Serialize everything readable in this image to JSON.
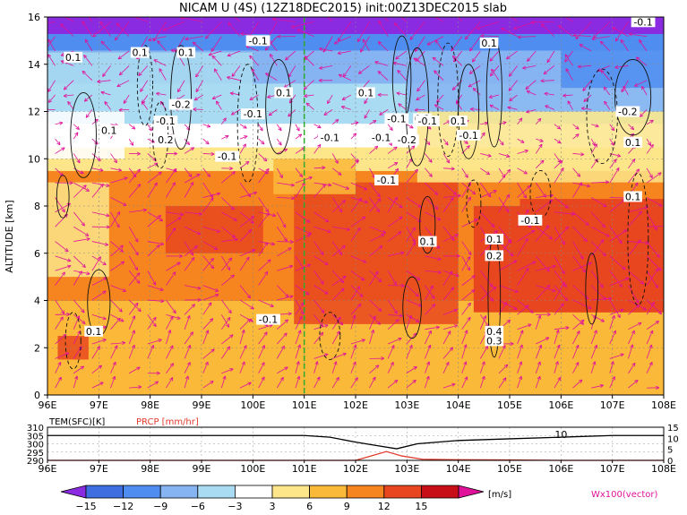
{
  "title": "NICAM U (4S) (12Z18DEC2015) init:00Z13DEC2015 slab",
  "chart_data": [
    {
      "type": "heatmap",
      "title": "NICAM U (4S) (12Z18DEC2015) init:00Z13DEC2015 slab",
      "xlabel": "",
      "ylabel": "ALTITUDE [km]",
      "xlim": [
        96,
        108
      ],
      "ylim": [
        0,
        16
      ],
      "x_ticks": [
        "96E",
        "97E",
        "98E",
        "99E",
        "100E",
        "101E",
        "102E",
        "103E",
        "104E",
        "105E",
        "106E",
        "107E",
        "108E"
      ],
      "y_ticks": [
        "0",
        "2",
        "4",
        "6",
        "8",
        "10",
        "12",
        "14",
        "16"
      ],
      "marker_lon": 101,
      "color_levels": [
        -15,
        -12,
        -9,
        -6,
        -3,
        3,
        6,
        9,
        12,
        15
      ],
      "colors": [
        "#8a2be2",
        "#3e6ee0",
        "#4f8df0",
        "#86b3f2",
        "#a9dcf2",
        "#ffffff",
        "#fde58a",
        "#fbb93a",
        "#f6851f",
        "#e8461e",
        "#c70f17",
        "#e0129a"
      ],
      "colorbar_tick_labels": [
        "−15",
        "−12",
        "−9",
        "−6",
        "−3",
        "3",
        "6",
        "9",
        "12",
        "15"
      ],
      "colorbar_unit": "[m/s]",
      "vector_label": "Wx100(vector)",
      "vector_color": "#e0129a",
      "layers_km": [
        {
          "z": [
            0,
            1.2
          ],
          "u": 6
        },
        {
          "z": [
            1.2,
            4.0
          ],
          "u": 8
        },
        {
          "z": [
            4.0,
            7.0
          ],
          "u": 9.5
        },
        {
          "z": [
            7.0,
            9.5
          ],
          "u": 10.5
        },
        {
          "z": [
            9.5,
            10.5
          ],
          "u": 5
        },
        {
          "z": [
            10.5,
            11.5
          ],
          "u": 2
        },
        {
          "z": [
            11.5,
            13.2
          ],
          "u": -4
        },
        {
          "z": [
            13.2,
            14.6
          ],
          "u": -7
        },
        {
          "z": [
            14.6,
            15.3
          ],
          "u": -11
        },
        {
          "z": [
            15.3,
            16
          ],
          "u": -16
        }
      ],
      "strong_core": {
        "lon": [
          104.3,
          108
        ],
        "z": [
          3.5,
          8.0
        ],
        "u": 13
      },
      "contour_labels": [
        {
          "lon": 97.8,
          "z": 14.5,
          "text": "0.1"
        },
        {
          "lon": 98.7,
          "z": 14.5,
          "text": "0.1"
        },
        {
          "lon": 98.6,
          "z": 12.3,
          "text": "-0.2"
        },
        {
          "lon": 98.3,
          "z": 11.6,
          "text": "-0.1"
        },
        {
          "lon": 98.3,
          "z": 10.8,
          "text": "0.2"
        },
        {
          "lon": 97.2,
          "z": 11.2,
          "text": "0.1"
        },
        {
          "lon": 96.5,
          "z": 14.3,
          "text": "0.1"
        },
        {
          "lon": 100.0,
          "z": 11.9,
          "text": "-0.1"
        },
        {
          "lon": 99.5,
          "z": 10.1,
          "text": "-0.1"
        },
        {
          "lon": 100.6,
          "z": 12.8,
          "text": "0.1"
        },
        {
          "lon": 102.2,
          "z": 12.8,
          "text": "0.1"
        },
        {
          "lon": 101.5,
          "z": 10.9,
          "text": "-0.1"
        },
        {
          "lon": 102.5,
          "z": 10.9,
          "text": "-0.1"
        },
        {
          "lon": 103.0,
          "z": 10.8,
          "text": "-0.2"
        },
        {
          "lon": 102.8,
          "z": 11.7,
          "text": "-0.1"
        },
        {
          "lon": 103.3,
          "z": 11.7,
          "text": "0.1"
        },
        {
          "lon": 104.0,
          "z": 11.6,
          "text": "0.1"
        },
        {
          "lon": 104.2,
          "z": 11.0,
          "text": "-0.1"
        },
        {
          "lon": 104.6,
          "z": 14.9,
          "text": "0.1"
        },
        {
          "lon": 103.4,
          "z": 11.6,
          "text": "-0.1"
        },
        {
          "lon": 100.1,
          "z": 15.0,
          "text": "-0.1"
        },
        {
          "lon": 107.6,
          "z": 15.8,
          "text": "-0.1"
        },
        {
          "lon": 107.3,
          "z": 12.0,
          "text": "-0.2"
        },
        {
          "lon": 107.4,
          "z": 10.7,
          "text": "0.1"
        },
        {
          "lon": 107.4,
          "z": 8.4,
          "text": "0.1"
        },
        {
          "lon": 102.6,
          "z": 9.1,
          "text": "-0.1"
        },
        {
          "lon": 105.4,
          "z": 7.4,
          "text": "-0.1"
        },
        {
          "lon": 103.4,
          "z": 6.5,
          "text": "0.1"
        },
        {
          "lon": 104.7,
          "z": 6.6,
          "text": "0.1"
        },
        {
          "lon": 104.7,
          "z": 5.9,
          "text": "0.2"
        },
        {
          "lon": 100.3,
          "z": 3.2,
          "text": "-0.1"
        },
        {
          "lon": 96.9,
          "z": 2.7,
          "text": "0.1"
        },
        {
          "lon": 104.7,
          "z": 2.7,
          "text": "0.4"
        },
        {
          "lon": 104.7,
          "z": 2.3,
          "text": "0.3"
        }
      ]
    },
    {
      "type": "line",
      "title": "",
      "series": [
        {
          "name": "TEM(SFC)[K]",
          "color": "#000000",
          "x": [
            96,
            100,
            101,
            101.5,
            102,
            102.4,
            102.8,
            103.2,
            103.6,
            104,
            105,
            106,
            107,
            108
          ],
          "values": [
            305,
            305,
            305,
            304,
            301,
            299,
            297,
            300,
            301,
            302,
            303,
            304,
            305,
            305
          ]
        },
        {
          "name": "PRCP [mm/hr]",
          "color": "#e23b2e",
          "x": [
            96,
            101,
            102,
            102.3,
            102.6,
            102.9,
            103.3,
            104,
            105,
            106,
            108
          ],
          "values": [
            0,
            0,
            0,
            2,
            4,
            2,
            0.5,
            0.3,
            0.2,
            0,
            0
          ]
        }
      ],
      "y_left_ticks": [
        "290",
        "295",
        "300",
        "305",
        "310"
      ],
      "y_left_lim": [
        290,
        310
      ],
      "y_right_ticks": [
        "0",
        "5",
        "10",
        "15"
      ],
      "y_right_lim": [
        0,
        15
      ],
      "x_ticks": [
        "96E",
        "97E",
        "98E",
        "99E",
        "100E",
        "101E",
        "102E",
        "103E",
        "104E",
        "105E",
        "106E",
        "107E",
        "108E"
      ],
      "annotations": [
        {
          "lon": 106.0,
          "text": "10"
        }
      ]
    }
  ]
}
